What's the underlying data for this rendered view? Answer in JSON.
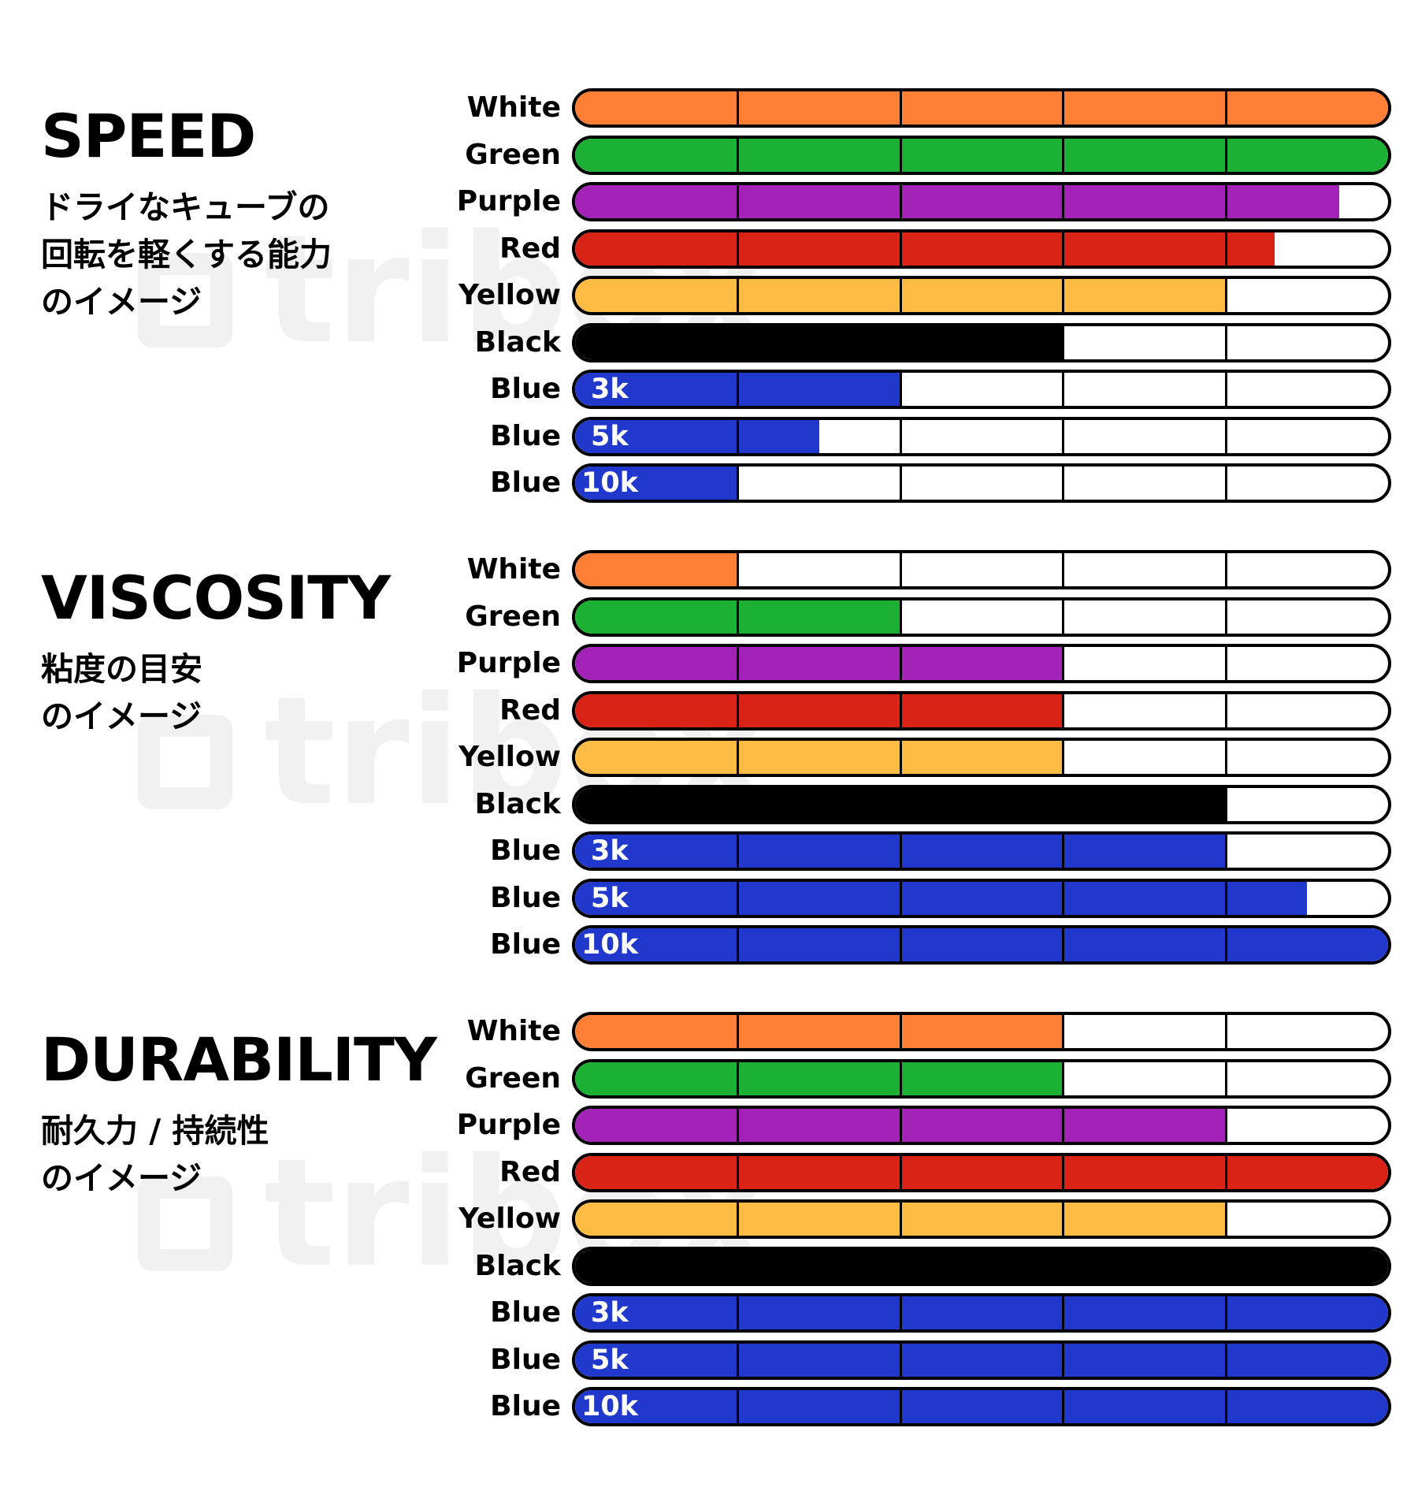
{
  "chart_data": [
    {
      "type": "bar",
      "title": "SPEED",
      "subtitle": [
        "ドライなキューブの",
        "回転を軽くする能力",
        "のイメージ"
      ],
      "watermark": "tribox",
      "xlim": [
        0,
        5
      ],
      "ticks": 5,
      "rows": [
        {
          "label": "White",
          "tag": "",
          "value": 5,
          "color": "#FF7F37"
        },
        {
          "label": "Green",
          "tag": "",
          "value": 5,
          "color": "#1CB135"
        },
        {
          "label": "Purple",
          "tag": "",
          "value": 4.7,
          "color": "#A322B8"
        },
        {
          "label": "Red",
          "tag": "",
          "value": 4.3,
          "color": "#D92317"
        },
        {
          "label": "Yellow",
          "tag": "",
          "value": 4,
          "color": "#FFBC45"
        },
        {
          "label": "Black",
          "tag": "",
          "value": 3,
          "color": "#000000"
        },
        {
          "label": "Blue",
          "tag": "3k",
          "value": 2,
          "color": "#2039CC"
        },
        {
          "label": "Blue",
          "tag": "5k",
          "value": 1.5,
          "color": "#2039CC"
        },
        {
          "label": "Blue",
          "tag": "10k",
          "value": 1,
          "color": "#2039CC"
        }
      ]
    },
    {
      "type": "bar",
      "title": "VISCOSITY",
      "subtitle": [
        "粘度の目安",
        "のイメージ"
      ],
      "watermark": "tribox",
      "xlim": [
        0,
        5
      ],
      "ticks": 5,
      "rows": [
        {
          "label": "White",
          "tag": "",
          "value": 1,
          "color": "#FF7F37"
        },
        {
          "label": "Green",
          "tag": "",
          "value": 2,
          "color": "#1CB135"
        },
        {
          "label": "Purple",
          "tag": "",
          "value": 3,
          "color": "#A322B8"
        },
        {
          "label": "Red",
          "tag": "",
          "value": 3,
          "color": "#D92317"
        },
        {
          "label": "Yellow",
          "tag": "",
          "value": 3,
          "color": "#FFBC45"
        },
        {
          "label": "Black",
          "tag": "",
          "value": 4,
          "color": "#000000"
        },
        {
          "label": "Blue",
          "tag": "3k",
          "value": 4,
          "color": "#2039CC"
        },
        {
          "label": "Blue",
          "tag": "5k",
          "value": 4.5,
          "color": "#2039CC"
        },
        {
          "label": "Blue",
          "tag": "10k",
          "value": 5,
          "color": "#2039CC"
        }
      ]
    },
    {
      "type": "bar",
      "title": "DURABILITY",
      "subtitle": [
        "耐久力 / 持続性",
        "のイメージ"
      ],
      "watermark": "tribox",
      "xlim": [
        0,
        5
      ],
      "ticks": 5,
      "rows": [
        {
          "label": "White",
          "tag": "",
          "value": 3,
          "color": "#FF7F37"
        },
        {
          "label": "Green",
          "tag": "",
          "value": 3,
          "color": "#1CB135"
        },
        {
          "label": "Purple",
          "tag": "",
          "value": 4,
          "color": "#A322B8"
        },
        {
          "label": "Red",
          "tag": "",
          "value": 5,
          "color": "#D92317"
        },
        {
          "label": "Yellow",
          "tag": "",
          "value": 4,
          "color": "#FFBC45"
        },
        {
          "label": "Black",
          "tag": "",
          "value": 5,
          "color": "#000000"
        },
        {
          "label": "Blue",
          "tag": "3k",
          "value": 5,
          "color": "#2039CC"
        },
        {
          "label": "Blue",
          "tag": "5k",
          "value": 5,
          "color": "#2039CC"
        },
        {
          "label": "Blue",
          "tag": "10k",
          "value": 5,
          "color": "#2039CC"
        }
      ]
    }
  ]
}
